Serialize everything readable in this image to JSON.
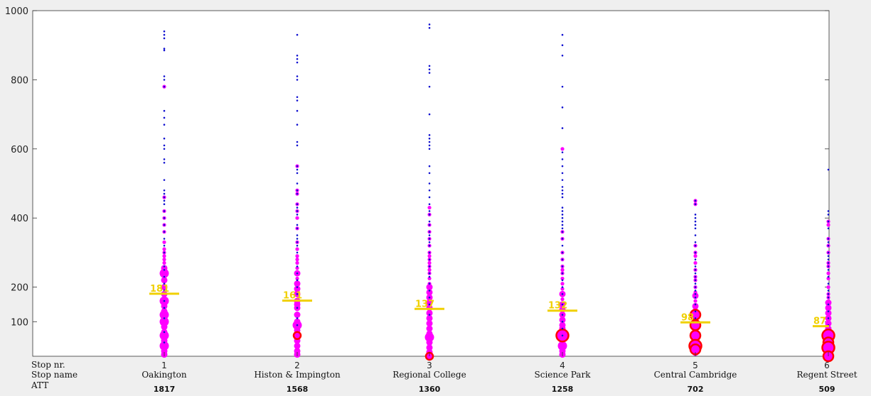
{
  "chart_data": {
    "type": "scatter",
    "ylim": [
      0,
      1000
    ],
    "y_ticks": [
      100,
      200,
      400,
      600,
      800,
      1000
    ],
    "row_titles": [
      "Stop nr.",
      "Stop name",
      "ATT"
    ],
    "categories": [
      {
        "nr": "1",
        "name": "Oakington",
        "att": "1817",
        "median": 181,
        "blue": [
          940,
          930,
          920,
          890,
          885,
          810,
          800,
          780,
          710,
          690,
          670,
          630,
          610,
          600,
          570,
          560,
          510,
          480,
          470,
          460,
          450,
          440,
          420,
          400,
          380,
          360,
          340,
          320,
          300,
          260,
          250,
          230,
          210,
          190,
          160,
          140,
          110,
          70,
          40
        ],
        "magenta": [
          [
            780,
            1
          ],
          [
            460,
            1
          ],
          [
            420,
            1
          ],
          [
            400,
            1
          ],
          [
            380,
            1
          ],
          [
            360,
            1
          ],
          [
            330,
            1
          ],
          [
            310,
            1
          ],
          [
            300,
            1
          ],
          [
            290,
            1
          ],
          [
            280,
            1
          ],
          [
            270,
            1
          ],
          [
            255,
            2
          ],
          [
            240,
            3
          ],
          [
            220,
            2
          ],
          [
            200,
            2
          ],
          [
            180,
            2
          ],
          [
            160,
            3
          ],
          [
            145,
            2
          ],
          [
            130,
            2
          ],
          [
            120,
            3
          ],
          [
            100,
            3
          ],
          [
            85,
            2
          ],
          [
            70,
            2
          ],
          [
            60,
            3
          ],
          [
            45,
            2
          ],
          [
            30,
            3
          ],
          [
            15,
            2
          ],
          [
            5,
            2
          ]
        ],
        "red": []
      },
      {
        "nr": "2",
        "name": "Histon & Impington",
        "att": "1568",
        "median": 161,
        "blue": [
          930,
          870,
          860,
          850,
          810,
          800,
          750,
          740,
          710,
          670,
          620,
          610,
          550,
          540,
          530,
          500,
          480,
          470,
          440,
          430,
          420,
          410,
          380,
          370,
          350,
          340,
          330,
          320,
          300,
          260,
          240,
          220,
          200,
          180,
          140,
          110,
          90
        ],
        "magenta": [
          [
            550,
            1
          ],
          [
            480,
            1
          ],
          [
            470,
            1
          ],
          [
            440,
            1
          ],
          [
            420,
            1
          ],
          [
            400,
            1
          ],
          [
            370,
            1
          ],
          [
            330,
            1
          ],
          [
            310,
            1
          ],
          [
            290,
            1
          ],
          [
            280,
            1
          ],
          [
            270,
            1
          ],
          [
            255,
            1
          ],
          [
            240,
            2
          ],
          [
            225,
            1
          ],
          [
            210,
            2
          ],
          [
            195,
            2
          ],
          [
            180,
            2
          ],
          [
            160,
            2
          ],
          [
            150,
            2
          ],
          [
            140,
            2
          ],
          [
            120,
            2
          ],
          [
            100,
            2
          ],
          [
            90,
            3
          ],
          [
            75,
            2
          ],
          [
            60,
            2
          ],
          [
            45,
            2
          ],
          [
            30,
            2
          ],
          [
            15,
            2
          ],
          [
            5,
            2
          ]
        ],
        "red": [
          [
            60,
            1
          ]
        ]
      },
      {
        "nr": "3",
        "name": "Regional College",
        "att": "1360",
        "median": 137,
        "blue": [
          960,
          950,
          840,
          830,
          820,
          780,
          700,
          640,
          630,
          620,
          610,
          600,
          550,
          530,
          500,
          480,
          460,
          440,
          420,
          410,
          390,
          380,
          360,
          350,
          340,
          330,
          320,
          300,
          280,
          260,
          240,
          230,
          210,
          190,
          170,
          150,
          120
        ],
        "magenta": [
          [
            430,
            1
          ],
          [
            410,
            1
          ],
          [
            380,
            1
          ],
          [
            360,
            1
          ],
          [
            340,
            1
          ],
          [
            320,
            1
          ],
          [
            300,
            1
          ],
          [
            290,
            1
          ],
          [
            280,
            1
          ],
          [
            270,
            1
          ],
          [
            260,
            1
          ],
          [
            250,
            1
          ],
          [
            240,
            1
          ],
          [
            225,
            1
          ],
          [
            210,
            1
          ],
          [
            200,
            2
          ],
          [
            185,
            2
          ],
          [
            170,
            2
          ],
          [
            155,
            2
          ],
          [
            140,
            2
          ],
          [
            125,
            2
          ],
          [
            110,
            2
          ],
          [
            95,
            2
          ],
          [
            80,
            2
          ],
          [
            65,
            2
          ],
          [
            55,
            3
          ],
          [
            40,
            2
          ],
          [
            25,
            2
          ],
          [
            12,
            2
          ]
        ],
        "red": [
          [
            0,
            1
          ]
        ]
      },
      {
        "nr": "4",
        "name": "Science Park",
        "att": "1258",
        "median": 132,
        "blue": [
          930,
          900,
          870,
          780,
          720,
          660,
          590,
          570,
          550,
          530,
          510,
          490,
          480,
          470,
          460,
          430,
          420,
          410,
          400,
          390,
          380,
          370,
          360,
          340,
          320,
          300,
          280,
          260,
          240,
          220,
          200,
          180,
          150,
          120,
          100,
          80,
          60
        ],
        "magenta": [
          [
            600,
            1
          ],
          [
            360,
            1
          ],
          [
            340,
            1
          ],
          [
            300,
            1
          ],
          [
            280,
            1
          ],
          [
            260,
            1
          ],
          [
            250,
            1
          ],
          [
            240,
            1
          ],
          [
            225,
            1
          ],
          [
            210,
            1
          ],
          [
            195,
            1
          ],
          [
            180,
            2
          ],
          [
            165,
            1
          ],
          [
            150,
            2
          ],
          [
            135,
            2
          ],
          [
            120,
            2
          ],
          [
            105,
            2
          ],
          [
            90,
            2
          ],
          [
            80,
            2
          ],
          [
            70,
            2
          ],
          [
            60,
            3
          ],
          [
            45,
            2
          ],
          [
            30,
            3
          ],
          [
            15,
            2
          ],
          [
            5,
            2
          ]
        ],
        "red": [
          [
            60,
            3
          ]
        ]
      },
      {
        "nr": "5",
        "name": "Central Cambridge",
        "att": "702",
        "median": 98,
        "blue": [
          450,
          440,
          410,
          400,
          390,
          380,
          370,
          350,
          330,
          320,
          300,
          280,
          260,
          250,
          240,
          230,
          220,
          210,
          200,
          190,
          180,
          170,
          150,
          130,
          110
        ],
        "magenta": [
          [
            450,
            1
          ],
          [
            440,
            1
          ],
          [
            320,
            1
          ],
          [
            300,
            1
          ],
          [
            290,
            1
          ],
          [
            270,
            1
          ],
          [
            250,
            1
          ],
          [
            230,
            1
          ],
          [
            220,
            1
          ],
          [
            200,
            1
          ],
          [
            185,
            1
          ],
          [
            175,
            2
          ],
          [
            160,
            1
          ],
          [
            145,
            2
          ],
          [
            130,
            2
          ],
          [
            115,
            2
          ],
          [
            100,
            2
          ],
          [
            85,
            2
          ],
          [
            70,
            2
          ],
          [
            55,
            3
          ],
          [
            40,
            2
          ],
          [
            25,
            2
          ],
          [
            10,
            2
          ]
        ],
        "red": [
          [
            120,
            2
          ],
          [
            90,
            2
          ],
          [
            60,
            2
          ],
          [
            30,
            3
          ],
          [
            20,
            2
          ]
        ]
      },
      {
        "nr": "6",
        "name": "Regent Street",
        "att": "509",
        "median": 87,
        "blue": [
          540,
          420,
          410,
          390,
          370,
          340,
          330,
          320,
          300,
          290,
          280,
          270,
          260,
          250,
          230,
          210,
          190,
          180,
          170,
          150,
          130,
          110,
          90
        ],
        "magenta": [
          [
            390,
            1
          ],
          [
            380,
            1
          ],
          [
            340,
            1
          ],
          [
            320,
            1
          ],
          [
            300,
            1
          ],
          [
            270,
            1
          ],
          [
            260,
            1
          ],
          [
            240,
            1
          ],
          [
            225,
            1
          ],
          [
            200,
            1
          ],
          [
            180,
            1
          ],
          [
            170,
            1
          ],
          [
            155,
            2
          ],
          [
            140,
            2
          ],
          [
            125,
            2
          ],
          [
            110,
            2
          ],
          [
            95,
            2
          ],
          [
            80,
            2
          ],
          [
            65,
            2
          ],
          [
            50,
            2
          ],
          [
            35,
            2
          ],
          [
            20,
            2
          ],
          [
            8,
            2
          ]
        ],
        "red": [
          [
            60,
            3
          ],
          [
            40,
            2
          ],
          [
            25,
            3
          ],
          [
            0,
            2
          ]
        ]
      }
    ]
  }
}
